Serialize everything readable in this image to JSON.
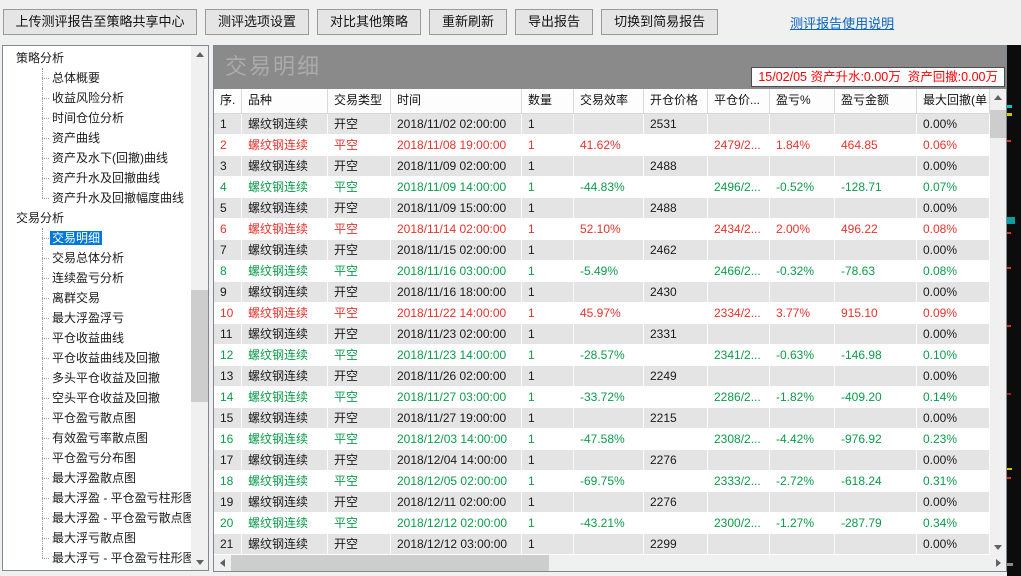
{
  "toolbar": {
    "buttons": [
      "上传测评报告至策略共享中心",
      "测评选项设置",
      "对比其他策略",
      "重新刷新",
      "导出报告",
      "切换到简易报告"
    ],
    "link": "测评报告使用说明"
  },
  "sidebar": {
    "sections": [
      {
        "label": "策略分析",
        "items": [
          "总体概要",
          "收益风险分析",
          "时间仓位分析",
          "资产曲线",
          "资产及水下(回撤)曲线",
          "资产升水及回撤曲线",
          "资产升水及回撤幅度曲线"
        ]
      },
      {
        "label": "交易分析",
        "items": [
          "交易明细",
          "交易总体分析",
          "连续盈亏分析",
          "离群交易",
          "最大浮盈浮亏",
          "平仓收益曲线",
          "平仓收益曲线及回撤",
          "多头平仓收益及回撤",
          "空头平仓收益及回撤",
          "平仓盈亏散点图",
          "有效盈亏率散点图",
          "平仓盈亏分布图",
          "最大浮盈散点图",
          "最大浮盈 - 平仓盈亏柱形图",
          "最大浮盈 - 平仓盈亏散点图",
          "最大浮亏散点图",
          "最大浮亏 - 平仓盈亏柱形图"
        ]
      }
    ],
    "selected": "交易明细"
  },
  "main": {
    "title": "交易明细",
    "status": "15/02/05 资产升水:0.00万  资产回撤:0.00万"
  },
  "table": {
    "columns": [
      "序.",
      "品种",
      "交易类型",
      "时间",
      "数量",
      "交易效率",
      "开仓价格",
      "平仓价...",
      "盈亏%",
      "盈亏金额",
      "最大回撤(单"
    ],
    "rows": [
      {
        "seq": "1",
        "symbol": "螺纹钢连续",
        "type": "开空",
        "time": "2018/11/02 02:00:00",
        "qty": "1",
        "eff": "",
        "open": "2531",
        "close": "",
        "pnl": "",
        "amount": "",
        "dd": "0.00%",
        "tone": "open"
      },
      {
        "seq": "2",
        "symbol": "螺纹钢连续",
        "type": "平空",
        "time": "2018/11/08 19:00:00",
        "qty": "1",
        "eff": "41.62%",
        "open": "",
        "close": "2479/2...",
        "pnl": "1.84%",
        "amount": "464.85",
        "dd": "0.06%",
        "tone": "profit"
      },
      {
        "seq": "3",
        "symbol": "螺纹钢连续",
        "type": "开空",
        "time": "2018/11/09 02:00:00",
        "qty": "1",
        "eff": "",
        "open": "2488",
        "close": "",
        "pnl": "",
        "amount": "",
        "dd": "0.00%",
        "tone": "open"
      },
      {
        "seq": "4",
        "symbol": "螺纹钢连续",
        "type": "平空",
        "time": "2018/11/09 14:00:00",
        "qty": "1",
        "eff": "-44.83%",
        "open": "",
        "close": "2496/2...",
        "pnl": "-0.52%",
        "amount": "-128.71",
        "dd": "0.07%",
        "tone": "loss"
      },
      {
        "seq": "5",
        "symbol": "螺纹钢连续",
        "type": "开空",
        "time": "2018/11/09 15:00:00",
        "qty": "1",
        "eff": "",
        "open": "2488",
        "close": "",
        "pnl": "",
        "amount": "",
        "dd": "0.00%",
        "tone": "open"
      },
      {
        "seq": "6",
        "symbol": "螺纹钢连续",
        "type": "平空",
        "time": "2018/11/14 02:00:00",
        "qty": "1",
        "eff": "52.10%",
        "open": "",
        "close": "2434/2...",
        "pnl": "2.00%",
        "amount": "496.22",
        "dd": "0.08%",
        "tone": "profit"
      },
      {
        "seq": "7",
        "symbol": "螺纹钢连续",
        "type": "开空",
        "time": "2018/11/15 02:00:00",
        "qty": "1",
        "eff": "",
        "open": "2462",
        "close": "",
        "pnl": "",
        "amount": "",
        "dd": "0.00%",
        "tone": "open"
      },
      {
        "seq": "8",
        "symbol": "螺纹钢连续",
        "type": "平空",
        "time": "2018/11/16 03:00:00",
        "qty": "1",
        "eff": "-5.49%",
        "open": "",
        "close": "2466/2...",
        "pnl": "-0.32%",
        "amount": "-78.63",
        "dd": "0.08%",
        "tone": "loss"
      },
      {
        "seq": "9",
        "symbol": "螺纹钢连续",
        "type": "开空",
        "time": "2018/11/16 18:00:00",
        "qty": "1",
        "eff": "",
        "open": "2430",
        "close": "",
        "pnl": "",
        "amount": "",
        "dd": "0.00%",
        "tone": "open"
      },
      {
        "seq": "10",
        "symbol": "螺纹钢连续",
        "type": "平空",
        "time": "2018/11/22 14:00:00",
        "qty": "1",
        "eff": "45.97%",
        "open": "",
        "close": "2334/2...",
        "pnl": "3.77%",
        "amount": "915.10",
        "dd": "0.09%",
        "tone": "profit"
      },
      {
        "seq": "11",
        "symbol": "螺纹钢连续",
        "type": "开空",
        "time": "2018/11/23 02:00:00",
        "qty": "1",
        "eff": "",
        "open": "2331",
        "close": "",
        "pnl": "",
        "amount": "",
        "dd": "0.00%",
        "tone": "open"
      },
      {
        "seq": "12",
        "symbol": "螺纹钢连续",
        "type": "平空",
        "time": "2018/11/23 14:00:00",
        "qty": "1",
        "eff": "-28.57%",
        "open": "",
        "close": "2341/2...",
        "pnl": "-0.63%",
        "amount": "-146.98",
        "dd": "0.10%",
        "tone": "loss"
      },
      {
        "seq": "13",
        "symbol": "螺纹钢连续",
        "type": "开空",
        "time": "2018/11/26 02:00:00",
        "qty": "1",
        "eff": "",
        "open": "2249",
        "close": "",
        "pnl": "",
        "amount": "",
        "dd": "0.00%",
        "tone": "open"
      },
      {
        "seq": "14",
        "symbol": "螺纹钢连续",
        "type": "平空",
        "time": "2018/11/27 03:00:00",
        "qty": "1",
        "eff": "-33.72%",
        "open": "",
        "close": "2286/2...",
        "pnl": "-1.82%",
        "amount": "-409.20",
        "dd": "0.14%",
        "tone": "loss"
      },
      {
        "seq": "15",
        "symbol": "螺纹钢连续",
        "type": "开空",
        "time": "2018/11/27 19:00:00",
        "qty": "1",
        "eff": "",
        "open": "2215",
        "close": "",
        "pnl": "",
        "amount": "",
        "dd": "0.00%",
        "tone": "open"
      },
      {
        "seq": "16",
        "symbol": "螺纹钢连续",
        "type": "平空",
        "time": "2018/12/03 14:00:00",
        "qty": "1",
        "eff": "-47.58%",
        "open": "",
        "close": "2308/2...",
        "pnl": "-4.42%",
        "amount": "-976.92",
        "dd": "0.23%",
        "tone": "loss"
      },
      {
        "seq": "17",
        "symbol": "螺纹钢连续",
        "type": "开空",
        "time": "2018/12/04 14:00:00",
        "qty": "1",
        "eff": "",
        "open": "2276",
        "close": "",
        "pnl": "",
        "amount": "",
        "dd": "0.00%",
        "tone": "open"
      },
      {
        "seq": "18",
        "symbol": "螺纹钢连续",
        "type": "平空",
        "time": "2018/12/05 02:00:00",
        "qty": "1",
        "eff": "-69.75%",
        "open": "",
        "close": "2333/2...",
        "pnl": "-2.72%",
        "amount": "-618.24",
        "dd": "0.31%",
        "tone": "loss"
      },
      {
        "seq": "19",
        "symbol": "螺纹钢连续",
        "type": "开空",
        "time": "2018/12/11 02:00:00",
        "qty": "1",
        "eff": "",
        "open": "2276",
        "close": "",
        "pnl": "",
        "amount": "",
        "dd": "0.00%",
        "tone": "open"
      },
      {
        "seq": "20",
        "symbol": "螺纹钢连续",
        "type": "平空",
        "time": "2018/12/12 02:00:00",
        "qty": "1",
        "eff": "-43.21%",
        "open": "",
        "close": "2300/2...",
        "pnl": "-1.27%",
        "amount": "-287.79",
        "dd": "0.34%",
        "tone": "loss"
      },
      {
        "seq": "21",
        "symbol": "螺纹钢连续",
        "type": "开空",
        "time": "2018/12/12 03:00:00",
        "qty": "1",
        "eff": "",
        "open": "2299",
        "close": "",
        "pnl": "",
        "amount": "",
        "dd": "0.00%",
        "tone": "open"
      }
    ]
  },
  "colors": {
    "selected_item_bg": "#0078d7",
    "profit_red": "#e8322d",
    "loss_green": "#0b9c4a",
    "link_blue": "#0563c1",
    "status_red": "#fe0000",
    "header_bar_bg": "#8a8a8a",
    "header_bar_text": "#ababab",
    "row_stripe": "#e4e4e4"
  }
}
